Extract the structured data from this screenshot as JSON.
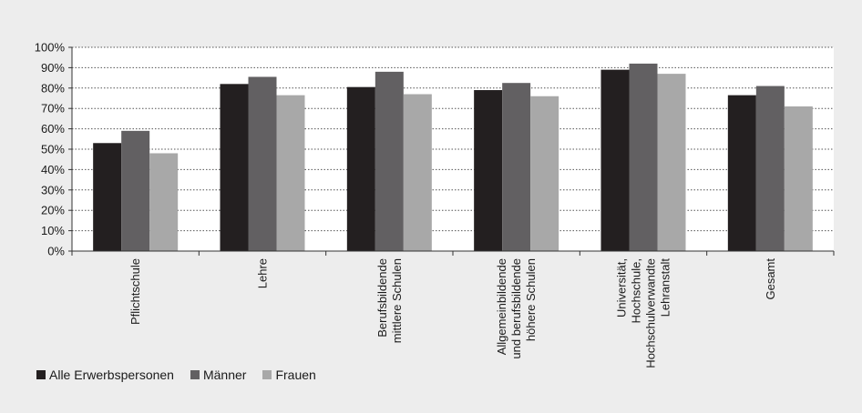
{
  "chart_data": {
    "type": "bar",
    "categories": [
      [
        "Pflichtschule"
      ],
      [
        "Lehre"
      ],
      [
        "Berufsbildende",
        "mittlere Schulen"
      ],
      [
        "Allgemeinbildende",
        "und berufsbildende",
        "höhere Schulen"
      ],
      [
        "Universität,",
        "Hochschule,",
        "Hochschulverwandte",
        "Lehranstalt"
      ],
      [
        "Gesamt"
      ]
    ],
    "series": [
      {
        "name": "Alle Erwerbspersonen",
        "color": "#231f20",
        "values": [
          0.53,
          0.82,
          0.805,
          0.79,
          0.89,
          0.765
        ]
      },
      {
        "name": "Männer",
        "color": "#626062",
        "values": [
          0.59,
          0.855,
          0.88,
          0.825,
          0.92,
          0.81
        ]
      },
      {
        "name": "Frauen",
        "color": "#a8a8a8",
        "values": [
          0.48,
          0.765,
          0.77,
          0.76,
          0.87,
          0.71
        ]
      }
    ],
    "yticks": [
      "0%",
      "10%",
      "20%",
      "30%",
      "40%",
      "50%",
      "60%",
      "70%",
      "80%",
      "90%",
      "100%"
    ],
    "ylim": [
      0,
      1
    ],
    "grid": true,
    "legend_position": "bottom-left"
  }
}
